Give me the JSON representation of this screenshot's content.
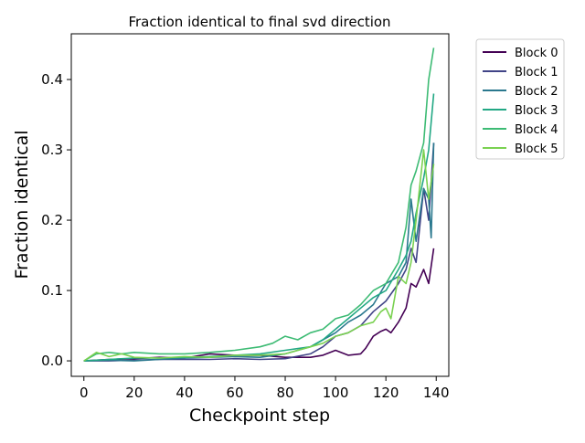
{
  "chart_data": {
    "type": "line",
    "title": "Fraction identical to final svd direction",
    "xlabel": "Checkpoint step",
    "ylabel": "Fraction identical",
    "xlim": [
      -5,
      145
    ],
    "ylim": [
      -0.022,
      0.465
    ],
    "xticks": [
      0,
      20,
      40,
      60,
      80,
      100,
      120,
      140
    ],
    "yticks": [
      0.0,
      0.1,
      0.2,
      0.3,
      0.4
    ],
    "ytick_labels": [
      "0.0",
      "0.1",
      "0.2",
      "0.3",
      "0.4"
    ],
    "grid": false,
    "legend_position": "outside-top-right",
    "series": [
      {
        "name": "Block 0",
        "color": "#440154",
        "x": [
          0,
          10,
          20,
          30,
          40,
          50,
          60,
          70,
          80,
          90,
          95,
          100,
          105,
          110,
          112,
          115,
          118,
          120,
          122,
          125,
          128,
          130,
          132,
          135,
          137,
          139
        ],
        "y": [
          0,
          0.002,
          0.003,
          0.005,
          0.004,
          0.01,
          0.008,
          0.008,
          0.005,
          0.005,
          0.008,
          0.015,
          0.008,
          0.01,
          0.018,
          0.035,
          0.042,
          0.045,
          0.04,
          0.055,
          0.075,
          0.11,
          0.105,
          0.13,
          0.11,
          0.16
        ]
      },
      {
        "name": "Block 1",
        "color": "#414487",
        "x": [
          0,
          10,
          20,
          30,
          40,
          50,
          60,
          70,
          80,
          90,
          95,
          100,
          105,
          110,
          115,
          120,
          125,
          128,
          130,
          132,
          135,
          137,
          139
        ],
        "y": [
          0,
          0,
          0.001,
          0.002,
          0.002,
          0.002,
          0.003,
          0.002,
          0.003,
          0.01,
          0.02,
          0.035,
          0.04,
          0.05,
          0.07,
          0.085,
          0.11,
          0.13,
          0.16,
          0.14,
          0.245,
          0.2,
          0.31
        ]
      },
      {
        "name": "Block 2",
        "color": "#2a788e",
        "x": [
          0,
          10,
          20,
          30,
          40,
          50,
          60,
          70,
          80,
          85,
          90,
          95,
          100,
          105,
          110,
          115,
          120,
          125,
          128,
          130,
          132,
          135,
          137,
          138,
          139
        ],
        "y": [
          0,
          0.001,
          0,
          0.002,
          0.004,
          0.005,
          0.006,
          0.005,
          0.01,
          0.015,
          0.02,
          0.03,
          0.04,
          0.055,
          0.065,
          0.08,
          0.11,
          0.12,
          0.14,
          0.23,
          0.17,
          0.245,
          0.23,
          0.175,
          0.31
        ]
      },
      {
        "name": "Block 3",
        "color": "#22a884",
        "x": [
          0,
          10,
          20,
          30,
          40,
          50,
          60,
          70,
          80,
          90,
          95,
          100,
          105,
          110,
          115,
          120,
          125,
          128,
          130,
          132,
          135,
          137,
          139
        ],
        "y": [
          0,
          0.002,
          0.004,
          0.004,
          0.005,
          0.006,
          0.008,
          0.01,
          0.015,
          0.02,
          0.03,
          0.045,
          0.06,
          0.075,
          0.09,
          0.1,
          0.13,
          0.15,
          0.17,
          0.21,
          0.26,
          0.3,
          0.38
        ]
      },
      {
        "name": "Block 4",
        "color": "#3dbb74",
        "x": [
          0,
          5,
          10,
          15,
          20,
          30,
          40,
          50,
          60,
          70,
          75,
          80,
          85,
          90,
          95,
          100,
          105,
          110,
          115,
          120,
          125,
          128,
          130,
          132,
          135,
          137,
          139
        ],
        "y": [
          0,
          0.01,
          0.012,
          0.01,
          0.012,
          0.01,
          0.01,
          0.012,
          0.015,
          0.02,
          0.025,
          0.035,
          0.03,
          0.04,
          0.045,
          0.06,
          0.065,
          0.08,
          0.1,
          0.11,
          0.14,
          0.19,
          0.25,
          0.27,
          0.31,
          0.4,
          0.445
        ]
      },
      {
        "name": "Block 5",
        "color": "#7ad151",
        "x": [
          0,
          5,
          10,
          15,
          20,
          30,
          40,
          50,
          60,
          70,
          80,
          90,
          95,
          100,
          105,
          110,
          115,
          118,
          120,
          122,
          125,
          128,
          130,
          132,
          135,
          137,
          139
        ],
        "y": [
          0,
          0.012,
          0.006,
          0.01,
          0.005,
          0.004,
          0.006,
          0.005,
          0.008,
          0.008,
          0.01,
          0.02,
          0.025,
          0.035,
          0.04,
          0.05,
          0.055,
          0.07,
          0.075,
          0.06,
          0.12,
          0.11,
          0.14,
          0.2,
          0.3,
          0.23,
          0.28
        ]
      }
    ]
  }
}
